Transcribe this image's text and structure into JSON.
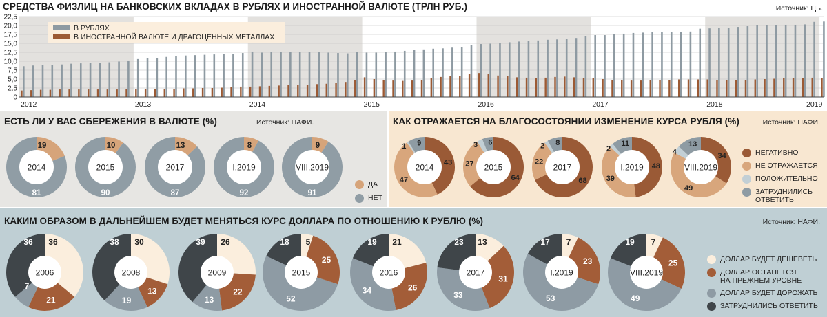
{
  "top": {
    "title": "СРЕДСТВА ФИЗЛИЦ НА БАНКОВСКИХ ВКЛАДАХ В РУБЛЯХ И ИНОСТРАННОЙ ВАЛЮТЕ (ТРЛН РУБ.)",
    "source": "Источник: ЦБ."
  },
  "mid_left": {
    "title": "ЕСТЬ ЛИ У ВАС СБЕРЕЖЕНИЯ В ВАЛЮТЕ (%)",
    "source": "Источник: НАФИ."
  },
  "mid_right": {
    "title": "КАК ОТРАЖАЕТСЯ НА БЛАГОСОСТОЯНИИ ИЗМЕНЕНИЕ КУРСА РУБЛЯ (%)",
    "source": "Источник: НАФИ."
  },
  "bottom": {
    "title": "КАКИМ ОБРАЗОМ  В ДАЛЬНЕЙШЕМ БУДЕТ МЕНЯТЬСЯ КУРС ДОЛЛАРА ПО ОТНОШЕНИЮ К РУБЛЮ (%)",
    "source": "Источник: НАФИ."
  },
  "colors": {
    "rub": "#8e9aa2",
    "fx": "#9c5a34",
    "band": "#e3e1de",
    "yes": "#d6a47a",
    "no": "#909da5",
    "negative": "#9a5a36",
    "none": "#d8a67c",
    "positive": "#c2cfd5",
    "hard": "#8e9ba3",
    "cheaper": "#fbeedd",
    "same": "#a35d38",
    "dearer": "#8e9ba4",
    "undecided": "#3f4549"
  },
  "chart_data": [
    {
      "type": "bar",
      "title": "СРЕДСТВА ФИЗЛИЦ НА БАНКОВСКИХ ВКЛАДАХ В РУБЛЯХ И ИНОСТРАННОЙ ВАЛЮТЕ (ТРЛН РУБ.)",
      "ylim": [
        0,
        22.5
      ],
      "yticks": [
        "0",
        "2,5",
        "5,0",
        "7,5",
        "10,0",
        "12,5",
        "15,0",
        "17,5",
        "20,0",
        "22,5"
      ],
      "year_labels": [
        "2012",
        "2013",
        "2014",
        "2015",
        "2016",
        "2017",
        "2018",
        "2019"
      ],
      "legend": [
        "В РУБЛЯХ",
        "В ИНОСТРАННОЙ ВАЛЮТЕ И ДРАГОЦЕННЫХ МЕТАЛЛАХ"
      ],
      "series": [
        {
          "name": "В РУБЛЯХ",
          "values": [
            8.6,
            8.8,
            8.9,
            9.0,
            9.1,
            9.3,
            9.4,
            9.5,
            9.6,
            9.7,
            9.9,
            10.2,
            10.6,
            10.8,
            10.9,
            11.2,
            11.4,
            11.6,
            11.7,
            11.8,
            11.9,
            12.0,
            12.1,
            12.3,
            12.7,
            12.4,
            12.5,
            12.6,
            12.6,
            12.6,
            12.6,
            12.5,
            12.4,
            12.3,
            12.2,
            12.5,
            12.4,
            12.4,
            12.5,
            12.7,
            12.9,
            13.1,
            13.3,
            13.5,
            13.6,
            13.8,
            13.9,
            14.5,
            14.8,
            14.9,
            15.1,
            15.3,
            15.5,
            15.6,
            15.8,
            16.0,
            16.1,
            16.3,
            16.5,
            17.0,
            17.3,
            17.3,
            17.5,
            17.7,
            17.9,
            18.0,
            18.1,
            18.1,
            18.2,
            18.2,
            18.3,
            19.1,
            19.2,
            19.3,
            19.4,
            19.6,
            19.8,
            20.0,
            20.1,
            20.1,
            20.2,
            20.2,
            20.3,
            21.0,
            21.1
          ]
        },
        {
          "name": "В ИНОСТРАННОЙ ВАЛЮТЕ И ДРАГОЦЕННЫХ МЕТАЛЛАХ",
          "values": [
            1.8,
            1.9,
            2.0,
            2.0,
            2.1,
            2.1,
            2.1,
            2.1,
            2.1,
            2.1,
            2.1,
            2.2,
            2.2,
            2.2,
            2.3,
            2.3,
            2.3,
            2.4,
            2.4,
            2.5,
            2.5,
            2.6,
            2.7,
            2.9,
            2.9,
            3.0,
            3.1,
            3.2,
            3.3,
            3.4,
            3.4,
            3.6,
            3.7,
            3.9,
            4.2,
            4.8,
            5.5,
            5.0,
            4.8,
            4.6,
            4.5,
            4.6,
            4.8,
            5.2,
            5.6,
            5.8,
            5.9,
            6.4,
            6.7,
            6.5,
            6.0,
            5.8,
            5.5,
            5.4,
            5.3,
            5.4,
            5.6,
            5.7,
            5.5,
            5.2,
            5.3,
            5.0,
            4.8,
            4.7,
            4.6,
            4.6,
            4.7,
            4.8,
            4.8,
            4.9,
            4.9,
            4.9,
            4.9,
            4.8,
            4.7,
            4.7,
            4.8,
            4.9,
            5.0,
            5.1,
            5.2,
            5.3,
            5.3,
            5.4,
            5.3
          ]
        }
      ]
    },
    {
      "type": "pie",
      "title": "ЕСТЬ ЛИ У ВАС СБЕРЕЖЕНИЯ В ВАЛЮТЕ (%)",
      "legend": [
        "ДА",
        "НЕТ"
      ],
      "charts": [
        {
          "label": "2014",
          "values": [
            19,
            81
          ]
        },
        {
          "label": "2015",
          "values": [
            10,
            90
          ]
        },
        {
          "label": "2017",
          "values": [
            13,
            87
          ]
        },
        {
          "label": "I.2019",
          "values": [
            8,
            92
          ]
        },
        {
          "label": "VIII.2019",
          "values": [
            9,
            91
          ]
        }
      ]
    },
    {
      "type": "pie",
      "title": "КАК ОТРАЖАЕТСЯ НА БЛАГОСОСТОЯНИИ ИЗМЕНЕНИЕ КУРСА РУБЛЯ (%)",
      "legend": [
        "НЕГАТИВНО",
        "НЕ ОТРАЖАЕТСЯ",
        "ПОЛОЖИТЕЛЬНО",
        "ЗАТРУДНИЛИСЬ ОТВЕТИТЬ"
      ],
      "charts": [
        {
          "label": "2014",
          "values": [
            43,
            47,
            1,
            9
          ]
        },
        {
          "label": "2015",
          "values": [
            64,
            27,
            3,
            6
          ]
        },
        {
          "label": "2017",
          "values": [
            68,
            22,
            2,
            8
          ]
        },
        {
          "label": "I.2019",
          "values": [
            48,
            39,
            2,
            11
          ]
        },
        {
          "label": "VIII.2019",
          "values": [
            34,
            49,
            4,
            13
          ]
        }
      ]
    },
    {
      "type": "pie",
      "title": "КАКИМ ОБРАЗОМ  В ДАЛЬНЕЙШЕМ БУДЕТ МЕНЯТЬСЯ КУРС ДОЛЛАРА ПО ОТНОШЕНИЮ К РУБЛЮ (%)",
      "legend": [
        "ДОЛЛАР БУДЕТ ДЕШЕВЕТЬ",
        "ДОЛЛАР ОСТАНЕТСЯ НА ПРЕЖНЕМ УРОВНЕ",
        "ДОЛЛАР БУДЕТ ДОРОЖАТЬ",
        "ЗАТРУДНИЛИСЬ ОТВЕТИТЬ"
      ],
      "charts": [
        {
          "label": "2006",
          "values": [
            36,
            21,
            7,
            36
          ]
        },
        {
          "label": "2008",
          "values": [
            30,
            13,
            19,
            38
          ]
        },
        {
          "label": "2009",
          "values": [
            26,
            22,
            13,
            39
          ]
        },
        {
          "label": "2015",
          "values": [
            5,
            25,
            52,
            18
          ]
        },
        {
          "label": "2016",
          "values": [
            21,
            26,
            34,
            19
          ]
        },
        {
          "label": "2017",
          "values": [
            13,
            31,
            33,
            23
          ]
        },
        {
          "label": "I.2019",
          "values": [
            7,
            23,
            53,
            17
          ]
        },
        {
          "label": "VIII.2019",
          "values": [
            7,
            25,
            49,
            19
          ]
        }
      ]
    }
  ]
}
